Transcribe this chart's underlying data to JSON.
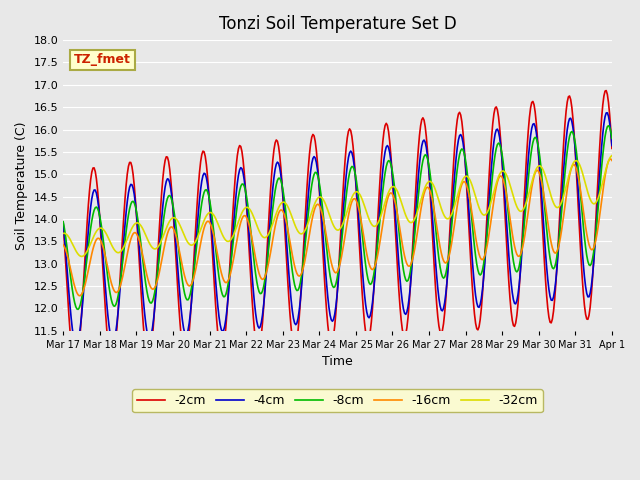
{
  "title": "Tonzi Soil Temperature Set D",
  "xlabel": "Time",
  "ylabel": "Soil Temperature (C)",
  "ylim": [
    11.5,
    18.0
  ],
  "yticks": [
    11.5,
    12.0,
    12.5,
    13.0,
    13.5,
    14.0,
    14.5,
    15.0,
    15.5,
    16.0,
    16.5,
    17.0,
    17.5,
    18.0
  ],
  "bg_color": "#e8e8e8",
  "series_colors": {
    "-2cm": "#dd0000",
    "-4cm": "#0000cc",
    "-8cm": "#00bb00",
    "-16cm": "#ff8800",
    "-32cm": "#dddd00"
  },
  "legend_box_color": "#ffffcc",
  "legend_box_edge": "#aaaa44",
  "annotation_text": "TZ_fmet",
  "annotation_color": "#cc2200",
  "annotation_bg": "#ffffcc",
  "annotation_edge": "#aaaa44",
  "xtick_positions": [
    0,
    1,
    2,
    3,
    4,
    5,
    6,
    7,
    8,
    9,
    10,
    11,
    12,
    13,
    14,
    15
  ],
  "xtick_labels": [
    "Mar 17",
    "Mar 18",
    "Mar 19",
    "Mar 20",
    "Mar 21",
    "Mar 22",
    "Mar 23",
    "Mar 24",
    "Mar 25",
    "Mar 26",
    "Mar 27",
    "Mar 28",
    "Mar 29",
    "Mar 30",
    "Mar 31",
    "Apr 1"
  ],
  "n_points": 480,
  "base_mean_start": 12.85,
  "base_mean_end": 14.35,
  "phase_shift_4cm": 0.18,
  "phase_shift_8cm": 0.44,
  "phase_shift_16cm": 0.78,
  "phase_shift_32cm": 1.15
}
